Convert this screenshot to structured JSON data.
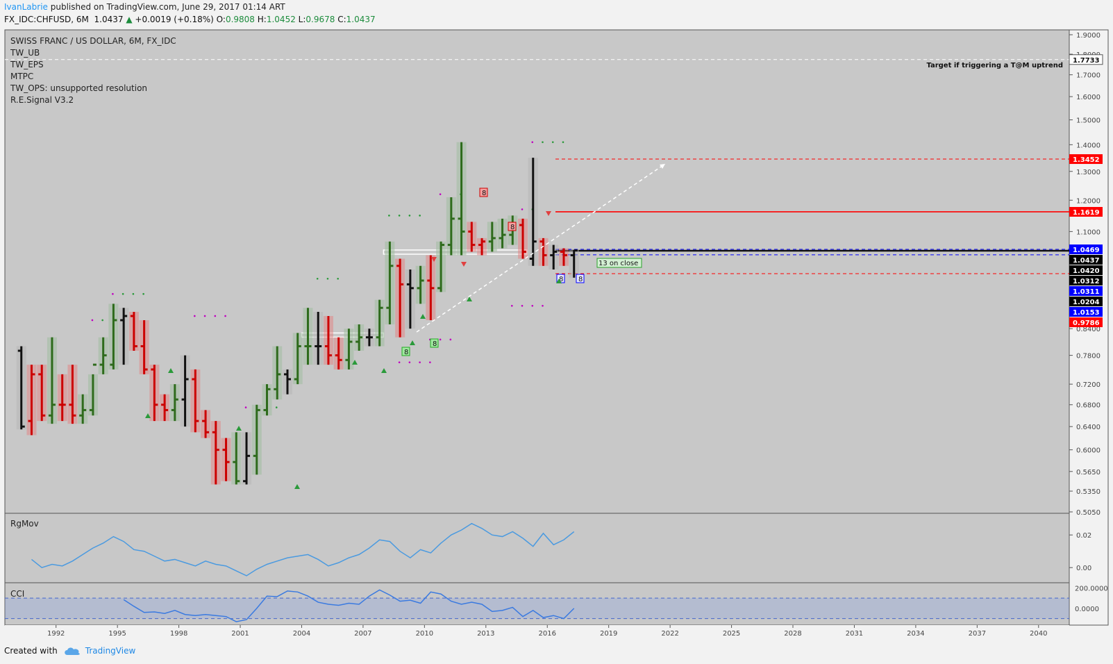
{
  "header": {
    "author": "IvanLabrie",
    "published": "published on TradingView.com, June 29, 2017 01:14 ART",
    "symbol": "FX_IDC:CHFUSD, 6M",
    "last": "1.0437",
    "change": "+0.0019 (+0.18%)",
    "open_label": "O:",
    "open": "0.9808",
    "high_label": "H:",
    "high": "1.0452",
    "low_label": "L:",
    "low": "0.9678",
    "close_label": "C:",
    "close": "1.0437"
  },
  "legend": {
    "title": "SWISS FRANC / US DOLLAR, 6M, FX_IDC",
    "items": [
      "TW_UB",
      "TW_EPS",
      "MTPC",
      "TW_OPS: unsupported resolution",
      "R.E.Signal V3.2"
    ]
  },
  "annotations": {
    "target": "Target if triggering a T@M uptrend",
    "thirteen": "13 on close",
    "eight": "8"
  },
  "footer": {
    "created_with": "Created with",
    "brand": "TradingView"
  },
  "panes": {
    "rgmov": "RgMov",
    "cci": "CCI"
  },
  "colors": {
    "up": "#2e6b1c",
    "down": "#cc0000",
    "flat": "#111111",
    "accent": "#2196f3",
    "red_label": "#ff0000",
    "blue_label": "#0000ff"
  },
  "chart_data": [
    {
      "type": "ohlc",
      "title": "SWISS FRANC / US DOLLAR, 6M, FX_IDC",
      "scale": "log",
      "ylim": [
        0.505,
        1.92
      ],
      "xlim": [
        1989.5,
        2041.5
      ],
      "x_ticks": [
        "1992",
        "1995",
        "1998",
        "2001",
        "2004",
        "2007",
        "2010",
        "2013",
        "2016",
        "2019",
        "2022",
        "2025",
        "2028",
        "2031",
        "2034",
        "2037",
        "2040"
      ],
      "y_ticks": [
        "1.9000",
        "1.8000",
        "1.7000",
        "1.6000",
        "1.5000",
        "1.4000",
        "1.3000",
        "1.2000",
        "1.1000",
        "0.8400",
        "0.7800",
        "0.7200",
        "0.6800",
        "0.6400",
        "0.6000",
        "0.5650",
        "0.5350",
        "0.5050"
      ],
      "price_labels": [
        {
          "text": "1.7733",
          "value": 1.7733,
          "bg": "#ffffff",
          "fg": "#111111"
        },
        {
          "text": "1.3452",
          "value": 1.3452,
          "bg": "#ff0000",
          "fg": "#ffffff"
        },
        {
          "text": "1.1619",
          "value": 1.1619,
          "bg": "#ff0000",
          "fg": "#ffffff"
        },
        {
          "text": "1.0469",
          "value": 1.0469,
          "bg": "#0000ff",
          "fg": "#ffffff"
        },
        {
          "text": "1.0437",
          "value": 1.0437,
          "bg": "#000000",
          "fg": "#ffffff"
        },
        {
          "text": "1.0420",
          "value": 1.042,
          "bg": "#000000",
          "fg": "#ffffff"
        },
        {
          "text": "1.0311",
          "value": 1.0311,
          "bg": "#0000ff",
          "fg": "#ffffff"
        },
        {
          "text": "1.0312",
          "value": 1.0312,
          "bg": "#000000",
          "fg": "#ffffff"
        },
        {
          "text": "1.0204",
          "value": 1.0204,
          "bg": "#000000",
          "fg": "#ffffff"
        },
        {
          "text": "1.0153",
          "value": 1.0153,
          "bg": "#0000ff",
          "fg": "#ffffff"
        },
        {
          "text": "0.9786",
          "value": 0.9786,
          "bg": "#ff0000",
          "fg": "#ffffff"
        }
      ],
      "levels": [
        {
          "value": 1.7733,
          "color": "#ffffff",
          "style": "dashed"
        },
        {
          "value": 1.3452,
          "color": "#ff0000",
          "style": "dashed"
        },
        {
          "value": 1.1619,
          "color": "#ff0000",
          "style": "solid"
        },
        {
          "value": 1.0469,
          "color": "#0000ff",
          "style": "dashed"
        },
        {
          "value": 1.0437,
          "color": "#111111",
          "style": "solid"
        },
        {
          "value": 1.042,
          "color": "#111111",
          "style": "solid"
        },
        {
          "value": 1.0311,
          "color": "#0000ff",
          "style": "dashed"
        },
        {
          "value": 0.9786,
          "color": "#ff0000",
          "style": "dashed"
        }
      ],
      "bars": [
        {
          "t": 1990.0,
          "o": 0.79,
          "h": 0.8,
          "l": 0.635,
          "c": 0.64,
          "d": "flat"
        },
        {
          "t": 1990.5,
          "o": 0.65,
          "h": 0.76,
          "l": 0.625,
          "c": 0.74,
          "d": "down"
        },
        {
          "t": 1991.0,
          "o": 0.74,
          "h": 0.76,
          "l": 0.65,
          "c": 0.66,
          "d": "down"
        },
        {
          "t": 1991.5,
          "o": 0.66,
          "h": 0.82,
          "l": 0.645,
          "c": 0.68,
          "d": "up"
        },
        {
          "t": 1992.0,
          "o": 0.68,
          "h": 0.74,
          "l": 0.65,
          "c": 0.68,
          "d": "down"
        },
        {
          "t": 1992.5,
          "o": 0.68,
          "h": 0.76,
          "l": 0.645,
          "c": 0.66,
          "d": "down"
        },
        {
          "t": 1993.0,
          "o": 0.66,
          "h": 0.7,
          "l": 0.645,
          "c": 0.67,
          "d": "up"
        },
        {
          "t": 1993.5,
          "o": 0.67,
          "h": 0.74,
          "l": 0.66,
          "c": 0.76,
          "d": "up"
        },
        {
          "t": 1994.0,
          "o": 0.76,
          "h": 0.82,
          "l": 0.74,
          "c": 0.78,
          "d": "up"
        },
        {
          "t": 1994.5,
          "o": 0.76,
          "h": 0.9,
          "l": 0.75,
          "c": 0.86,
          "d": "up"
        },
        {
          "t": 1995.0,
          "o": 0.86,
          "h": 0.89,
          "l": 0.76,
          "c": 0.87,
          "d": "flat"
        },
        {
          "t": 1995.5,
          "o": 0.87,
          "h": 0.88,
          "l": 0.79,
          "c": 0.8,
          "d": "down"
        },
        {
          "t": 1996.0,
          "o": 0.8,
          "h": 0.86,
          "l": 0.74,
          "c": 0.75,
          "d": "down"
        },
        {
          "t": 1996.5,
          "o": 0.75,
          "h": 0.76,
          "l": 0.65,
          "c": 0.68,
          "d": "down"
        },
        {
          "t": 1997.0,
          "o": 0.68,
          "h": 0.7,
          "l": 0.65,
          "c": 0.67,
          "d": "down"
        },
        {
          "t": 1997.5,
          "o": 0.67,
          "h": 0.72,
          "l": 0.65,
          "c": 0.69,
          "d": "up"
        },
        {
          "t": 1998.0,
          "o": 0.69,
          "h": 0.78,
          "l": 0.64,
          "c": 0.73,
          "d": "flat"
        },
        {
          "t": 1998.5,
          "o": 0.73,
          "h": 0.75,
          "l": 0.63,
          "c": 0.65,
          "d": "down"
        },
        {
          "t": 1999.0,
          "o": 0.65,
          "h": 0.67,
          "l": 0.62,
          "c": 0.63,
          "d": "down"
        },
        {
          "t": 1999.5,
          "o": 0.63,
          "h": 0.65,
          "l": 0.545,
          "c": 0.6,
          "d": "down"
        },
        {
          "t": 2000.0,
          "o": 0.6,
          "h": 0.62,
          "l": 0.55,
          "c": 0.58,
          "d": "down"
        },
        {
          "t": 2000.5,
          "o": 0.58,
          "h": 0.63,
          "l": 0.545,
          "c": 0.55,
          "d": "up"
        },
        {
          "t": 2001.0,
          "o": 0.55,
          "h": 0.63,
          "l": 0.545,
          "c": 0.59,
          "d": "flat"
        },
        {
          "t": 2001.5,
          "o": 0.59,
          "h": 0.68,
          "l": 0.56,
          "c": 0.67,
          "d": "up"
        },
        {
          "t": 2002.0,
          "o": 0.67,
          "h": 0.72,
          "l": 0.66,
          "c": 0.71,
          "d": "up"
        },
        {
          "t": 2002.5,
          "o": 0.71,
          "h": 0.8,
          "l": 0.69,
          "c": 0.74,
          "d": "up"
        },
        {
          "t": 2003.0,
          "o": 0.74,
          "h": 0.75,
          "l": 0.7,
          "c": 0.73,
          "d": "flat"
        },
        {
          "t": 2003.5,
          "o": 0.73,
          "h": 0.83,
          "l": 0.72,
          "c": 0.8,
          "d": "up"
        },
        {
          "t": 2004.0,
          "o": 0.8,
          "h": 0.89,
          "l": 0.76,
          "c": 0.8,
          "d": "up"
        },
        {
          "t": 2004.5,
          "o": 0.8,
          "h": 0.88,
          "l": 0.76,
          "c": 0.8,
          "d": "flat"
        },
        {
          "t": 2005.0,
          "o": 0.8,
          "h": 0.87,
          "l": 0.76,
          "c": 0.78,
          "d": "down"
        },
        {
          "t": 2005.5,
          "o": 0.78,
          "h": 0.82,
          "l": 0.75,
          "c": 0.77,
          "d": "down"
        },
        {
          "t": 2006.0,
          "o": 0.77,
          "h": 0.84,
          "l": 0.75,
          "c": 0.81,
          "d": "up"
        },
        {
          "t": 2006.5,
          "o": 0.81,
          "h": 0.85,
          "l": 0.79,
          "c": 0.82,
          "d": "up"
        },
        {
          "t": 2007.0,
          "o": 0.82,
          "h": 0.84,
          "l": 0.8,
          "c": 0.82,
          "d": "flat"
        },
        {
          "t": 2007.5,
          "o": 0.82,
          "h": 0.91,
          "l": 0.8,
          "c": 0.89,
          "d": "up"
        },
        {
          "t": 2008.0,
          "o": 0.89,
          "h": 1.07,
          "l": 0.85,
          "c": 1.0,
          "d": "up"
        },
        {
          "t": 2008.5,
          "o": 1.0,
          "h": 1.02,
          "l": 0.82,
          "c": 0.95,
          "d": "down"
        },
        {
          "t": 2009.0,
          "o": 0.95,
          "h": 0.99,
          "l": 0.84,
          "c": 0.94,
          "d": "flat"
        },
        {
          "t": 2009.5,
          "o": 0.94,
          "h": 1.0,
          "l": 0.9,
          "c": 0.96,
          "d": "up"
        },
        {
          "t": 2010.0,
          "o": 0.96,
          "h": 1.03,
          "l": 0.86,
          "c": 0.94,
          "d": "down"
        },
        {
          "t": 2010.5,
          "o": 0.94,
          "h": 1.07,
          "l": 0.93,
          "c": 1.06,
          "d": "up"
        },
        {
          "t": 2011.0,
          "o": 1.06,
          "h": 1.21,
          "l": 1.03,
          "c": 1.14,
          "d": "up"
        },
        {
          "t": 2011.5,
          "o": 1.14,
          "h": 1.41,
          "l": 1.03,
          "c": 1.1,
          "d": "up"
        },
        {
          "t": 2012.0,
          "o": 1.1,
          "h": 1.13,
          "l": 1.04,
          "c": 1.06,
          "d": "down"
        },
        {
          "t": 2012.5,
          "o": 1.06,
          "h": 1.08,
          "l": 1.03,
          "c": 1.07,
          "d": "down"
        },
        {
          "t": 2013.0,
          "o": 1.07,
          "h": 1.13,
          "l": 1.04,
          "c": 1.08,
          "d": "up"
        },
        {
          "t": 2013.5,
          "o": 1.08,
          "h": 1.14,
          "l": 1.05,
          "c": 1.09,
          "d": "up"
        },
        {
          "t": 2014.0,
          "o": 1.09,
          "h": 1.15,
          "l": 1.06,
          "c": 1.12,
          "d": "up"
        },
        {
          "t": 2014.5,
          "o": 1.12,
          "h": 1.14,
          "l": 1.02,
          "c": 1.04,
          "d": "down"
        },
        {
          "t": 2015.0,
          "o": 1.02,
          "h": 1.35,
          "l": 1.0,
          "c": 1.07,
          "d": "flat"
        },
        {
          "t": 2015.5,
          "o": 1.07,
          "h": 1.08,
          "l": 1.0,
          "c": 1.03,
          "d": "down"
        },
        {
          "t": 2016.0,
          "o": 1.03,
          "h": 1.06,
          "l": 0.99,
          "c": 1.04,
          "d": "flat"
        },
        {
          "t": 2016.5,
          "o": 1.04,
          "h": 1.05,
          "l": 1.0,
          "c": 1.03,
          "d": "down"
        },
        {
          "t": 2017.0,
          "o": 1.03,
          "h": 1.0452,
          "l": 0.9678,
          "c": 1.0437,
          "d": "flat"
        }
      ]
    },
    {
      "type": "line",
      "title": "RgMov",
      "y_ticks": [
        "0.02",
        "0.00"
      ],
      "ylim": [
        -0.008,
        0.032
      ],
      "x": [
        1990.5,
        1991,
        1991.5,
        1992,
        1992.5,
        1993,
        1993.5,
        1994,
        1994.5,
        1995,
        1995.5,
        1996,
        1996.5,
        1997,
        1997.5,
        1998,
        1998.5,
        1999,
        1999.5,
        2000,
        2000.5,
        2001,
        2001.5,
        2002,
        2002.5,
        2003,
        2003.5,
        2004,
        2004.5,
        2005,
        2005.5,
        2006,
        2006.5,
        2007,
        2007.5,
        2008,
        2008.5,
        2009,
        2009.5,
        2010,
        2010.5,
        2011,
        2011.5,
        2012,
        2012.5,
        2013,
        2013.5,
        2014,
        2014.5,
        2015,
        2015.5,
        2016,
        2016.5,
        2017
      ],
      "values": [
        0.005,
        0.0,
        0.002,
        0.001,
        0.004,
        0.008,
        0.012,
        0.015,
        0.019,
        0.016,
        0.011,
        0.01,
        0.007,
        0.004,
        0.005,
        0.003,
        0.001,
        0.004,
        0.002,
        0.001,
        -0.002,
        -0.005,
        -0.001,
        0.002,
        0.004,
        0.006,
        0.007,
        0.008,
        0.005,
        0.001,
        0.003,
        0.006,
        0.008,
        0.012,
        0.017,
        0.016,
        0.01,
        0.006,
        0.011,
        0.009,
        0.015,
        0.02,
        0.023,
        0.027,
        0.024,
        0.02,
        0.019,
        0.022,
        0.018,
        0.013,
        0.021,
        0.014,
        0.017,
        0.022
      ]
    },
    {
      "type": "line",
      "title": "CCI",
      "y_ticks": [
        "200.0000",
        "0.0000"
      ],
      "ylim": [
        -150,
        230
      ],
      "bands": [
        100,
        -100
      ],
      "x": [
        1995,
        1995.5,
        1996,
        1996.5,
        1997,
        1997.5,
        1998,
        1998.5,
        1999,
        1999.5,
        2000,
        2000.5,
        2001,
        2001.5,
        2002,
        2002.5,
        2003,
        2003.5,
        2004,
        2004.5,
        2005,
        2005.5,
        2006,
        2006.5,
        2007,
        2007.5,
        2008,
        2008.5,
        2009,
        2009.5,
        2010,
        2010.5,
        2011,
        2011.5,
        2012,
        2012.5,
        2013,
        2013.5,
        2014,
        2014.5,
        2015,
        2015.5,
        2016,
        2016.5,
        2017
      ],
      "values": [
        85,
        20,
        -40,
        -35,
        -50,
        -20,
        -60,
        -70,
        -60,
        -70,
        -80,
        -130,
        -110,
        0,
        120,
        115,
        170,
        160,
        120,
        60,
        40,
        30,
        50,
        40,
        120,
        180,
        130,
        70,
        80,
        50,
        160,
        140,
        70,
        40,
        60,
        40,
        -30,
        -20,
        10,
        -80,
        -20,
        -90,
        -70,
        -100,
        0
      ]
    }
  ]
}
